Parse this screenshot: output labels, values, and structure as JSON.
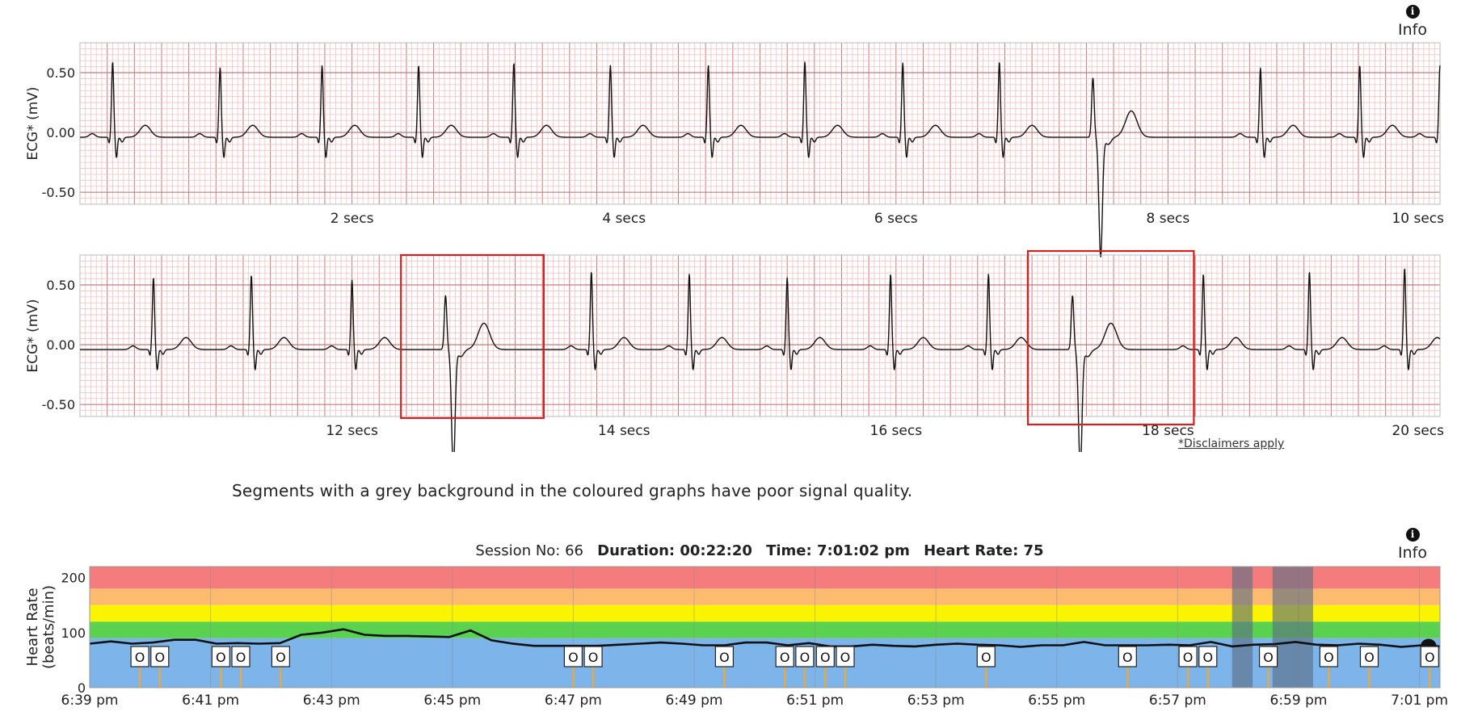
{
  "info_label": "Info",
  "note": "Segments with a grey background in the coloured graphs have poor signal quality.",
  "disclaimer": "*Disclaimers apply",
  "session": {
    "session_no_label": "Session No: 66",
    "duration_label": "Duration: 00:22:20",
    "time_label": "Time: 7:01:02 pm",
    "heart_rate_label": "Heart Rate: 75"
  },
  "colors": {
    "grid_minor": "#f1c2c2",
    "grid_major": "#c97a7a",
    "trace": "#111111",
    "highlight_box": "#d42020",
    "zone_red": "#f47c7c",
    "zone_orange": "#fdbb6f",
    "zone_yellow": "#fbf400",
    "zone_green": "#5bd24f",
    "zone_blue": "#7db4ea",
    "poor_signal": "#5a6e82",
    "marker_stem": "#f0a830"
  },
  "chart_data": [
    {
      "type": "line",
      "title": "",
      "ylabel": "ECG* (mV)",
      "ylim": [
        -0.6,
        0.75
      ],
      "xlim": [
        0,
        10
      ],
      "y_ticks": [
        0.5,
        0.0,
        -0.5
      ],
      "y_tick_labels": [
        "0.50",
        "0.00",
        "-0.50"
      ],
      "x_ticks": [
        2,
        4,
        6,
        8,
        10
      ],
      "x_tick_labels": [
        "2 secs",
        "4 secs",
        "6 secs",
        "8 secs",
        "10 secs"
      ],
      "grid": true,
      "beats": [
        {
          "t": 0.24,
          "amp": 0.63,
          "type": "normal"
        },
        {
          "t": 1.03,
          "amp": 0.58,
          "type": "normal"
        },
        {
          "t": 1.78,
          "amp": 0.6,
          "type": "normal"
        },
        {
          "t": 2.49,
          "amp": 0.6,
          "type": "normal"
        },
        {
          "t": 3.19,
          "amp": 0.62,
          "type": "normal"
        },
        {
          "t": 3.9,
          "amp": 0.6,
          "type": "normal"
        },
        {
          "t": 4.62,
          "amp": 0.6,
          "type": "normal"
        },
        {
          "t": 5.33,
          "amp": 0.63,
          "type": "normal"
        },
        {
          "t": 6.05,
          "amp": 0.62,
          "type": "normal"
        },
        {
          "t": 6.76,
          "amp": 0.63,
          "type": "normal"
        },
        {
          "t": 7.46,
          "amp": 0.55,
          "type": "ectopic"
        },
        {
          "t": 8.68,
          "amp": 0.58,
          "type": "normal"
        },
        {
          "t": 9.41,
          "amp": 0.6,
          "type": "normal"
        },
        {
          "t": 10.0,
          "amp": 0.6,
          "type": "normal"
        }
      ],
      "highlights": []
    },
    {
      "type": "line",
      "title": "",
      "ylabel": "ECG* (mV)",
      "ylim": [
        -0.6,
        0.75
      ],
      "xlim": [
        10,
        20
      ],
      "y_ticks": [
        0.5,
        0.0,
        -0.5
      ],
      "y_tick_labels": [
        "0.50",
        "0.00",
        "-0.50"
      ],
      "x_ticks": [
        12,
        14,
        16,
        18,
        20
      ],
      "x_tick_labels": [
        "12 secs",
        "14 secs",
        "16 secs",
        "18 secs",
        "20 secs"
      ],
      "grid": true,
      "beats": [
        {
          "t": 10.54,
          "amp": 0.6,
          "type": "normal"
        },
        {
          "t": 11.26,
          "amp": 0.62,
          "type": "normal"
        },
        {
          "t": 12.0,
          "amp": 0.58,
          "type": "normal"
        },
        {
          "t": 12.7,
          "amp": 0.5,
          "type": "ectopic"
        },
        {
          "t": 13.76,
          "amp": 0.65,
          "type": "normal"
        },
        {
          "t": 14.48,
          "amp": 0.63,
          "type": "normal"
        },
        {
          "t": 15.2,
          "amp": 0.6,
          "type": "normal"
        },
        {
          "t": 15.96,
          "amp": 0.63,
          "type": "normal"
        },
        {
          "t": 16.68,
          "amp": 0.63,
          "type": "normal"
        },
        {
          "t": 17.31,
          "amp": 0.5,
          "type": "ectopic"
        },
        {
          "t": 18.26,
          "amp": 0.63,
          "type": "normal"
        },
        {
          "t": 19.04,
          "amp": 0.65,
          "type": "normal"
        },
        {
          "t": 19.74,
          "amp": 0.68,
          "type": "normal"
        }
      ],
      "highlights": [
        [
          12.36,
          13.41
        ],
        [
          16.97,
          18.19
        ]
      ]
    },
    {
      "type": "line",
      "title": "",
      "ylabel": "Heart Rate (beats/min)",
      "ylim": [
        0,
        220
      ],
      "y_ticks": [
        0,
        100,
        200
      ],
      "y_tick_labels": [
        "0",
        "100",
        "200"
      ],
      "x_range_minutes": [
        0,
        22.34
      ],
      "x_tick_minutes": [
        0,
        2,
        4,
        6,
        8,
        10,
        12,
        14,
        16,
        18,
        20,
        22
      ],
      "x_tick_labels": [
        "6:39 pm",
        "6:41 pm",
        "6:43 pm",
        "6:45 pm",
        "6:47 pm",
        "6:49 pm",
        "6:51 pm",
        "6:53 pm",
        "6:55 pm",
        "6:57 pm",
        "6:59 pm",
        "7:01 pm"
      ],
      "grid": true,
      "zones": [
        {
          "from": 0,
          "to": 90,
          "color": "zone_blue"
        },
        {
          "from": 90,
          "to": 120,
          "color": "zone_green"
        },
        {
          "from": 120,
          "to": 150,
          "color": "zone_yellow"
        },
        {
          "from": 150,
          "to": 180,
          "color": "zone_orange"
        },
        {
          "from": 180,
          "to": 220,
          "color": "zone_red"
        }
      ],
      "poor_signal_minutes": [
        [
          18.9,
          19.24
        ],
        [
          19.57,
          20.24
        ]
      ],
      "series": [
        {
          "x_minutes": [
            0,
            0.35,
            0.7,
            1.05,
            1.4,
            1.75,
            2.1,
            2.45,
            2.8,
            3.15,
            3.5,
            3.85,
            4.2,
            4.55,
            4.9,
            5.25,
            5.6,
            5.95,
            6.3,
            6.65,
            7.0,
            7.35,
            7.7,
            8.05,
            8.4,
            8.75,
            9.1,
            9.45,
            9.8,
            10.15,
            10.5,
            10.85,
            11.2,
            11.55,
            11.9,
            12.25,
            12.6,
            12.95,
            13.3,
            13.65,
            14.0,
            14.35,
            14.7,
            15.05,
            15.4,
            15.75,
            16.1,
            16.45,
            16.8,
            17.15,
            17.5,
            17.85,
            18.2,
            18.55,
            18.9,
            19.25,
            19.6,
            19.95,
            20.3,
            20.65,
            21.0,
            21.35,
            21.7,
            22.05,
            22.34
          ],
          "values": [
            80,
            84,
            80,
            82,
            87,
            87,
            80,
            81,
            80,
            81,
            96,
            100,
            106,
            96,
            94,
            94,
            93,
            92,
            104,
            86,
            80,
            76,
            76,
            76,
            76,
            78,
            80,
            82,
            80,
            77,
            77,
            82,
            82,
            77,
            81,
            75,
            75,
            78,
            76,
            75,
            78,
            80,
            78,
            77,
            74,
            77,
            77,
            83,
            77,
            77,
            77,
            78,
            77,
            83,
            75,
            78,
            79,
            83,
            78,
            77,
            80,
            78,
            74,
            77,
            75
          ]
        }
      ],
      "markers": {
        "label": "O",
        "minutes": [
          0.83,
          1.16,
          2.17,
          2.5,
          3.16,
          8.0,
          8.33,
          10.5,
          11.5,
          11.83,
          12.17,
          12.5,
          14.83,
          17.17,
          18.17,
          18.5,
          19.5,
          20.5,
          21.17,
          22.17
        ]
      },
      "cursor_minute": 22.15
    }
  ]
}
